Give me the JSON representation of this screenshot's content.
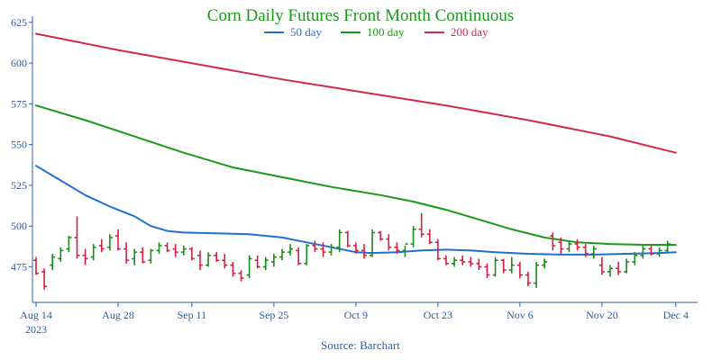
{
  "chart_data": {
    "type": "ohlc",
    "title": "Corn Daily Futures Front Month Continuous",
    "source": "Source: Barchart",
    "colors": {
      "title": "#1a9a1a",
      "up": "#1a8c1a",
      "down": "#d62040",
      "ma50": "#1f6fd1",
      "ma100": "#1a9a1a",
      "ma200": "#d22a4a",
      "axis": "#2a5ea8"
    },
    "legend": {
      "placement": "top-center",
      "items": [
        {
          "key": "ma50",
          "label": "50 day"
        },
        {
          "key": "ma100",
          "label": "100 day"
        },
        {
          "key": "ma200",
          "label": "200 day"
        }
      ]
    },
    "ylim": [
      462,
      626
    ],
    "yticks": [
      475,
      500,
      525,
      550,
      575,
      600,
      625
    ],
    "xticks": [
      {
        "label": "Aug 14",
        "sublabel": "2023",
        "index": 0
      },
      {
        "label": "Aug 28",
        "index": 10
      },
      {
        "label": "Sep 11",
        "index": 19
      },
      {
        "label": "Sep 25",
        "index": 29
      },
      {
        "label": "Oct 9",
        "index": 39
      },
      {
        "label": "Oct 23",
        "index": 49
      },
      {
        "label": "Nov 6",
        "index": 59
      },
      {
        "label": "Nov 20",
        "index": 69
      },
      {
        "label": "Dec 4",
        "index": 78
      }
    ],
    "ohlc": [
      [
        479,
        481,
        470,
        471
      ],
      [
        472,
        474,
        461,
        463
      ],
      [
        476,
        483,
        473,
        481
      ],
      [
        480,
        487,
        478,
        485
      ],
      [
        486,
        494,
        484,
        493
      ],
      [
        493,
        506,
        480,
        482
      ],
      [
        482,
        486,
        476,
        480
      ],
      [
        481,
        489,
        479,
        487
      ],
      [
        488,
        492,
        484,
        486
      ],
      [
        487,
        495,
        485,
        493
      ],
      [
        494,
        498,
        485,
        486
      ],
      [
        486,
        490,
        477,
        479
      ],
      [
        480,
        486,
        476,
        484
      ],
      [
        484,
        487,
        477,
        478
      ],
      [
        479,
        486,
        477,
        485
      ],
      [
        485,
        490,
        483,
        488
      ],
      [
        488,
        490,
        484,
        485
      ],
      [
        486,
        489,
        481,
        484
      ],
      [
        484,
        488,
        482,
        486
      ],
      [
        486,
        487,
        479,
        480
      ],
      [
        482,
        485,
        473,
        476
      ],
      [
        476,
        484,
        475,
        482
      ],
      [
        482,
        484,
        478,
        479
      ],
      [
        479,
        483,
        474,
        476
      ],
      [
        476,
        478,
        469,
        471
      ],
      [
        471,
        473,
        466,
        468
      ],
      [
        470,
        482,
        468,
        480
      ],
      [
        479,
        482,
        474,
        475
      ],
      [
        475,
        481,
        473,
        479
      ],
      [
        478,
        483,
        475,
        481
      ],
      [
        481,
        486,
        479,
        484
      ],
      [
        484,
        489,
        482,
        486
      ],
      [
        485,
        487,
        476,
        477
      ],
      [
        477,
        489,
        476,
        488
      ],
      [
        488,
        491,
        484,
        486
      ],
      [
        486,
        490,
        481,
        484
      ],
      [
        484,
        489,
        482,
        487
      ],
      [
        487,
        498,
        484,
        496
      ],
      [
        496,
        497,
        487,
        488
      ],
      [
        488,
        490,
        483,
        485
      ],
      [
        485,
        489,
        480,
        482
      ],
      [
        482,
        498,
        481,
        496
      ],
      [
        496,
        497,
        491,
        492
      ],
      [
        492,
        495,
        485,
        487
      ],
      [
        487,
        490,
        483,
        485
      ],
      [
        485,
        488,
        481,
        489
      ],
      [
        489,
        500,
        487,
        498
      ],
      [
        498,
        508,
        493,
        495
      ],
      [
        495,
        498,
        489,
        490
      ],
      [
        490,
        492,
        479,
        480
      ],
      [
        480,
        482,
        476,
        477
      ],
      [
        477,
        481,
        475,
        479
      ],
      [
        479,
        482,
        476,
        478
      ],
      [
        478,
        481,
        475,
        477
      ],
      [
        477,
        480,
        473,
        475
      ],
      [
        475,
        477,
        468,
        470
      ],
      [
        470,
        481,
        469,
        479
      ],
      [
        479,
        480,
        471,
        473
      ],
      [
        473,
        481,
        471,
        476
      ],
      [
        476,
        478,
        468,
        470
      ],
      [
        470,
        472,
        463,
        465
      ],
      [
        465,
        478,
        462,
        476
      ],
      [
        476,
        480,
        474,
        478
      ],
      [
        494,
        496,
        485,
        488
      ],
      [
        490,
        493,
        483,
        486
      ],
      [
        486,
        491,
        484,
        489
      ],
      [
        489,
        492,
        485,
        487
      ],
      [
        487,
        489,
        481,
        483
      ],
      [
        483,
        488,
        480,
        486
      ],
      [
        476,
        481,
        470,
        472
      ],
      [
        472,
        476,
        469,
        474
      ],
      [
        474,
        478,
        470,
        472
      ],
      [
        472,
        480,
        471,
        478
      ],
      [
        478,
        484,
        476,
        482
      ],
      [
        482,
        488,
        480,
        486
      ],
      [
        486,
        488,
        482,
        483
      ],
      [
        483,
        487,
        481,
        485
      ],
      [
        485,
        491,
        484,
        489
      ]
    ],
    "series": [
      {
        "key": "ma50",
        "name": "50 day",
        "points": [
          [
            0,
            537
          ],
          [
            3,
            528
          ],
          [
            6,
            519
          ],
          [
            9,
            512
          ],
          [
            12,
            506
          ],
          [
            14,
            500
          ],
          [
            16,
            497
          ],
          [
            18,
            496
          ],
          [
            22,
            495.5
          ],
          [
            26,
            495
          ],
          [
            30,
            493
          ],
          [
            33,
            490
          ],
          [
            36,
            487
          ],
          [
            39,
            484
          ],
          [
            41,
            483.5
          ],
          [
            44,
            484
          ],
          [
            47,
            485
          ],
          [
            50,
            485.5
          ],
          [
            53,
            485
          ],
          [
            56,
            484
          ],
          [
            60,
            483
          ],
          [
            64,
            482.5
          ],
          [
            68,
            482.5
          ],
          [
            72,
            483
          ],
          [
            76,
            483.5
          ],
          [
            78,
            484
          ]
        ]
      },
      {
        "key": "ma100",
        "name": "100 day",
        "points": [
          [
            0,
            574
          ],
          [
            6,
            565
          ],
          [
            12,
            555
          ],
          [
            18,
            545
          ],
          [
            24,
            536
          ],
          [
            30,
            530
          ],
          [
            36,
            524
          ],
          [
            42,
            519
          ],
          [
            46,
            515
          ],
          [
            50,
            510
          ],
          [
            54,
            504
          ],
          [
            58,
            498
          ],
          [
            62,
            493
          ],
          [
            66,
            490
          ],
          [
            70,
            489
          ],
          [
            74,
            488.5
          ],
          [
            78,
            488.5
          ]
        ]
      },
      {
        "key": "ma200",
        "name": "200 day",
        "points": [
          [
            0,
            618
          ],
          [
            10,
            608
          ],
          [
            20,
            599
          ],
          [
            30,
            590
          ],
          [
            40,
            582
          ],
          [
            50,
            574
          ],
          [
            60,
            565
          ],
          [
            70,
            555
          ],
          [
            78,
            545
          ]
        ]
      }
    ]
  }
}
